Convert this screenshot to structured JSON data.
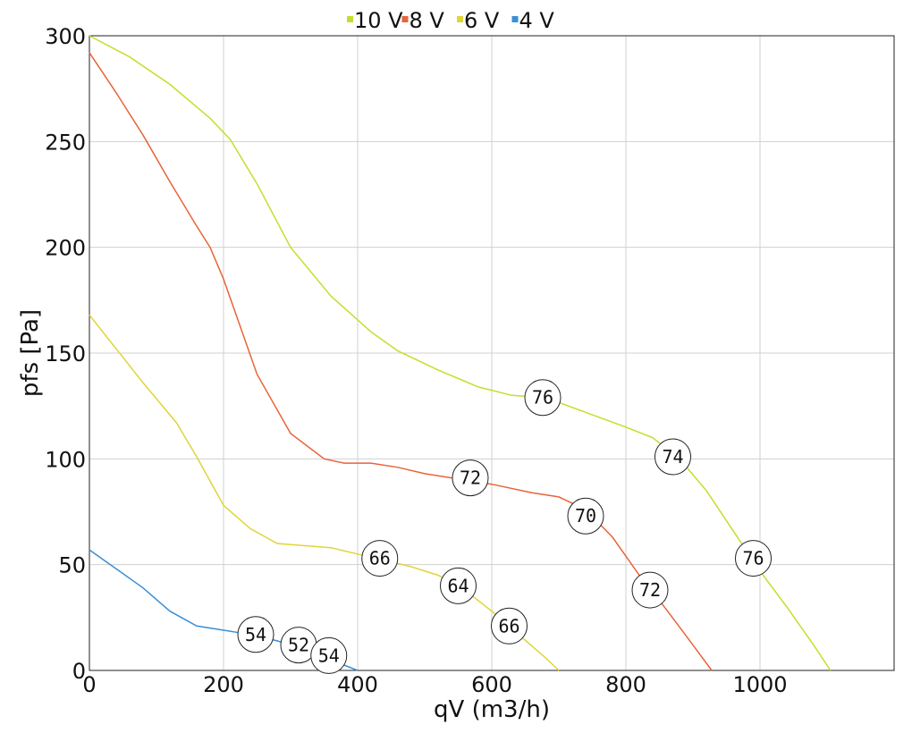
{
  "chart_data": {
    "type": "line",
    "xlabel": "qV (m3/h)",
    "ylabel": "pfs [Pa]",
    "xlim": [
      0,
      1200
    ],
    "ylim": [
      0,
      300
    ],
    "xticks": [
      0,
      200,
      400,
      600,
      800,
      1000
    ],
    "yticks": [
      0,
      50,
      100,
      150,
      200,
      250,
      300
    ],
    "grid": true,
    "legend_position": "top-center",
    "series": [
      {
        "name": "10 V",
        "color": "#c8dc2c",
        "x": [
          0,
          60,
          120,
          180,
          210,
          250,
          300,
          360,
          420,
          460,
          520,
          580,
          630,
          680,
          740,
          800,
          840,
          880,
          920,
          960,
          1000,
          1040,
          1080,
          1105
        ],
        "y": [
          300,
          290,
          277,
          261,
          251,
          230,
          200,
          177,
          160,
          151,
          142,
          134,
          130,
          129,
          122,
          115,
          110,
          100,
          85,
          66,
          47,
          30,
          12,
          0
        ],
        "markers": [
          {
            "x": 676,
            "y": 129,
            "label": "76"
          },
          {
            "x": 870,
            "y": 101,
            "label": "74"
          },
          {
            "x": 990,
            "y": 53,
            "label": "76"
          }
        ]
      },
      {
        "name": "8 V",
        "color": "#e8643a",
        "x": [
          0,
          40,
          80,
          120,
          160,
          180,
          200,
          220,
          250,
          300,
          350,
          380,
          420,
          460,
          500,
          540,
          600,
          660,
          700,
          740,
          780,
          820,
          860,
          900,
          928
        ],
        "y": [
          292,
          273,
          253,
          231,
          210,
          200,
          185,
          167,
          140,
          112,
          100,
          98,
          98,
          96,
          93,
          91,
          88,
          84,
          82,
          76,
          63,
          45,
          29,
          12,
          0
        ],
        "markers": [
          {
            "x": 568,
            "y": 91,
            "label": "72"
          },
          {
            "x": 740,
            "y": 73,
            "label": "70"
          },
          {
            "x": 836,
            "y": 38,
            "label": "72"
          }
        ]
      },
      {
        "name": "6 V",
        "color": "#e0d43a",
        "x": [
          0,
          40,
          80,
          130,
          160,
          200,
          240,
          280,
          320,
          360,
          400,
          440,
          480,
          520,
          560,
          600,
          640,
          680,
          700
        ],
        "y": [
          168,
          152,
          136,
          117,
          101,
          78,
          67,
          60,
          59,
          58,
          55,
          52,
          49,
          45,
          38,
          28,
          17,
          6,
          0
        ],
        "markers": [
          {
            "x": 433,
            "y": 53,
            "label": "66"
          },
          {
            "x": 550,
            "y": 40,
            "label": "64"
          },
          {
            "x": 626,
            "y": 21,
            "label": "66"
          }
        ]
      },
      {
        "name": "4 V",
        "color": "#3a8fd8",
        "x": [
          0,
          40,
          80,
          120,
          160,
          200,
          240,
          280,
          320,
          360,
          400
        ],
        "y": [
          57,
          48,
          39,
          28,
          21,
          19,
          17,
          14,
          10,
          5,
          0
        ],
        "markers": [
          {
            "x": 248,
            "y": 17,
            "label": "54"
          },
          {
            "x": 312,
            "y": 12,
            "label": "52"
          },
          {
            "x": 357,
            "y": 7,
            "label": "54"
          }
        ]
      }
    ]
  }
}
